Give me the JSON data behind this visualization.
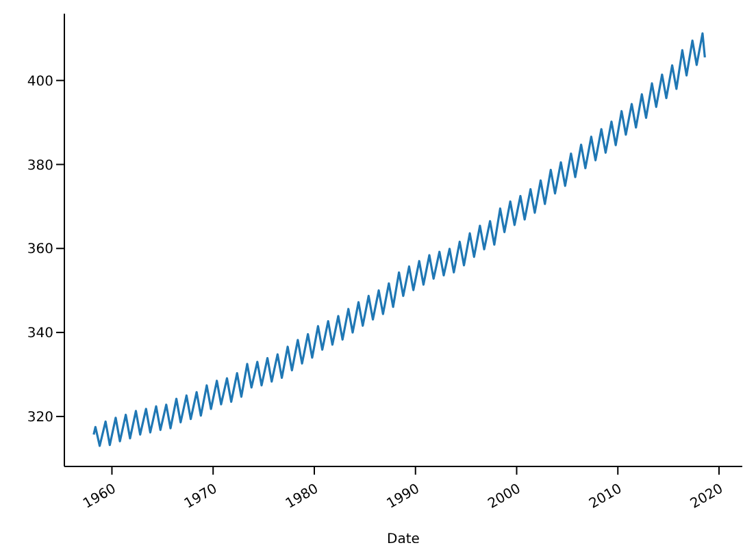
{
  "chart_data": {
    "type": "line",
    "xlabel": "Date",
    "color": "#1f77b4",
    "line_style": "solid",
    "x": [
      1958.2,
      1958.37,
      1958.79,
      1959.37,
      1959.79,
      1960.37,
      1960.79,
      1961.37,
      1961.79,
      1962.37,
      1962.79,
      1963.37,
      1963.79,
      1964.37,
      1964.79,
      1965.37,
      1965.79,
      1966.37,
      1966.79,
      1967.37,
      1967.79,
      1968.37,
      1968.79,
      1969.37,
      1969.79,
      1970.37,
      1970.79,
      1971.37,
      1971.79,
      1972.37,
      1972.79,
      1973.37,
      1973.79,
      1974.37,
      1974.79,
      1975.37,
      1975.79,
      1976.37,
      1976.79,
      1977.37,
      1977.79,
      1978.37,
      1978.79,
      1979.37,
      1979.79,
      1980.37,
      1980.79,
      1981.37,
      1981.79,
      1982.37,
      1982.79,
      1983.37,
      1983.79,
      1984.37,
      1984.79,
      1985.37,
      1985.79,
      1986.37,
      1986.79,
      1987.37,
      1987.79,
      1988.37,
      1988.79,
      1989.37,
      1989.79,
      1990.37,
      1990.79,
      1991.37,
      1991.79,
      1992.37,
      1992.79,
      1993.37,
      1993.79,
      1994.37,
      1994.79,
      1995.37,
      1995.79,
      1996.37,
      1996.79,
      1997.37,
      1997.79,
      1998.37,
      1998.79,
      1999.37,
      1999.79,
      2000.37,
      2000.79,
      2001.37,
      2001.79,
      2002.37,
      2002.79,
      2003.37,
      2003.79,
      2004.37,
      2004.79,
      2005.37,
      2005.79,
      2006.37,
      2006.79,
      2007.37,
      2007.79,
      2008.37,
      2008.79,
      2009.37,
      2009.79,
      2010.37,
      2010.79,
      2011.37,
      2011.79,
      2012.37,
      2012.79,
      2013.37,
      2013.79,
      2014.37,
      2014.79,
      2015.37,
      2015.79,
      2016.37,
      2016.79,
      2017.37,
      2017.79,
      2018.37,
      2018.6
    ],
    "values": [
      315.7,
      317.5,
      313.0,
      318.8,
      313.2,
      319.7,
      314.1,
      320.4,
      314.8,
      321.3,
      315.7,
      321.8,
      316.2,
      322.4,
      316.8,
      322.8,
      317.2,
      324.2,
      318.6,
      325.0,
      319.4,
      325.8,
      320.2,
      327.4,
      321.8,
      328.5,
      322.9,
      329.1,
      323.5,
      330.3,
      324.7,
      332.5,
      326.9,
      333.0,
      327.4,
      333.9,
      328.3,
      334.8,
      329.2,
      336.6,
      331.0,
      338.2,
      332.6,
      339.6,
      334.0,
      341.5,
      335.9,
      342.7,
      337.1,
      343.9,
      338.3,
      345.6,
      340.0,
      347.2,
      341.6,
      348.7,
      343.1,
      350.0,
      344.4,
      351.7,
      346.1,
      354.3,
      348.7,
      355.7,
      350.1,
      357.0,
      351.4,
      358.4,
      352.8,
      359.2,
      353.6,
      359.9,
      354.3,
      361.6,
      356.0,
      363.6,
      358.0,
      365.4,
      359.8,
      366.5,
      360.9,
      369.5,
      363.9,
      371.2,
      365.6,
      372.5,
      366.9,
      374.1,
      368.5,
      376.2,
      370.6,
      378.7,
      373.1,
      380.5,
      374.9,
      382.6,
      377.0,
      384.7,
      379.1,
      386.6,
      381.0,
      388.4,
      382.8,
      390.2,
      384.6,
      392.7,
      387.1,
      394.4,
      388.8,
      396.7,
      391.1,
      399.3,
      393.7,
      401.4,
      395.8,
      403.6,
      398.0,
      407.2,
      401.2,
      409.5,
      403.7,
      411.2,
      405.5
    ],
    "xlim": [
      1955.3,
      2022.3
    ],
    "xticks": [
      1960,
      1970,
      1980,
      1990,
      2000,
      2010,
      2020
    ],
    "ylim": [
      308.1,
      415.9
    ],
    "yticks": [
      320,
      340,
      360,
      380,
      400
    ]
  }
}
